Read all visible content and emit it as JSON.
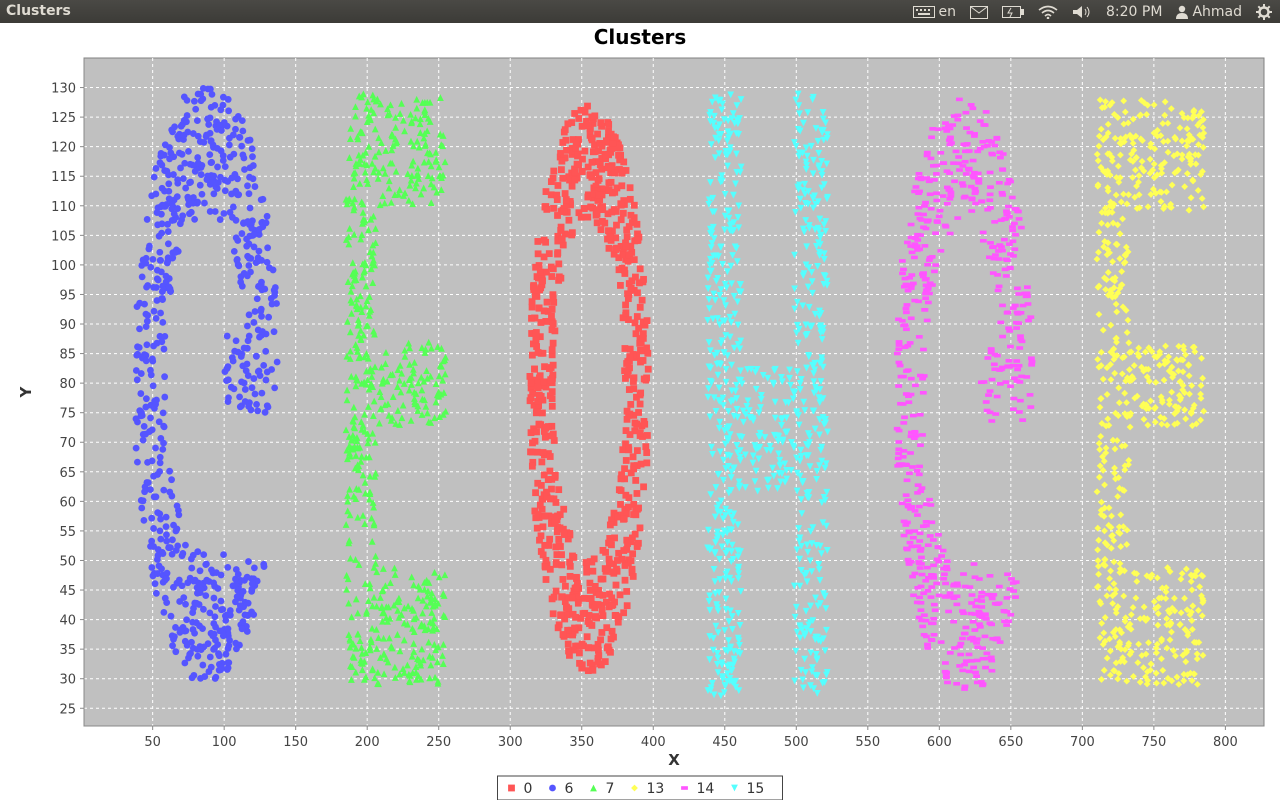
{
  "window": {
    "title": "Clusters"
  },
  "panel": {
    "lang": "en",
    "time": "8:20 PM",
    "user": "Ahmad"
  },
  "icons": [
    "keyboard-icon",
    "mail-icon",
    "battery-icon",
    "wifi-icon",
    "volume-icon",
    "user-icon",
    "gear-icon"
  ],
  "chart_data": {
    "type": "scatter",
    "title": "Clusters",
    "xlabel": "X",
    "ylabel": "Y",
    "xlim": [
      2,
      827
    ],
    "ylim": [
      22,
      135
    ],
    "xticks": [
      50,
      100,
      150,
      200,
      250,
      300,
      350,
      400,
      450,
      500,
      550,
      600,
      650,
      700,
      750,
      800
    ],
    "yticks": [
      25,
      30,
      35,
      40,
      45,
      50,
      55,
      60,
      65,
      70,
      75,
      80,
      85,
      90,
      95,
      100,
      105,
      110,
      115,
      120,
      125,
      130
    ],
    "grid": true,
    "legend": "bottom",
    "series": [
      {
        "name": "0",
        "color": "#ff5555",
        "marker": "square",
        "shape": "ring",
        "cx": 355,
        "cy": 79,
        "rx": 42,
        "ry": 48,
        "thick": 17,
        "n": 780,
        "seed": 11
      },
      {
        "name": "6",
        "color": "#5555ff",
        "marker": "circle",
        "shape": "G",
        "x": [
          38,
          138
        ],
        "y": [
          30,
          130
        ],
        "n": 720,
        "seed": 23
      },
      {
        "name": "7",
        "color": "#55ff55",
        "marker": "triangle-up",
        "shape": "E",
        "x": [
          185,
          255
        ],
        "y": [
          29,
          129
        ],
        "n": 640,
        "seed": 37
      },
      {
        "name": "13",
        "color": "#ffff55",
        "marker": "diamond",
        "shape": "E",
        "x": [
          710,
          785
        ],
        "y": [
          29,
          128
        ],
        "n": 640,
        "seed": 41
      },
      {
        "name": "14",
        "color": "#ff55ff",
        "marker": "rect",
        "shape": "G",
        "x": [
          570,
          665
        ],
        "y": [
          28,
          128
        ],
        "n": 640,
        "seed": 53
      },
      {
        "name": "15",
        "color": "#55ffff",
        "marker": "triangle-down",
        "shape": "H",
        "x": [
          438,
          522
        ],
        "y": [
          27,
          129
        ],
        "n": 720,
        "seed": 67
      }
    ]
  }
}
